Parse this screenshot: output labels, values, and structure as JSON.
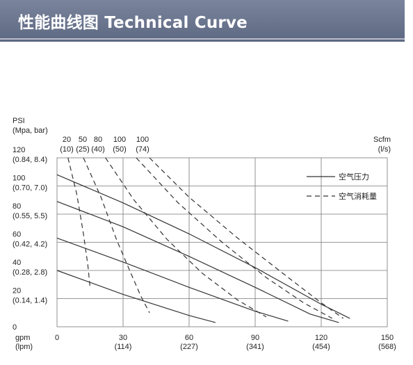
{
  "header": {
    "title": "性能曲线图 Technical Curve"
  },
  "chart_data": {
    "type": "line",
    "title": "性能曲线图 Technical Curve",
    "ylabel": [
      "PSI",
      "(Mpa, bar)"
    ],
    "xlabel": [
      "gpm",
      "(lpm)"
    ],
    "xlim": [
      0,
      150
    ],
    "ylim": [
      0,
      120
    ],
    "grid": true,
    "x_ticks": [
      {
        "value": 0,
        "label": "0",
        "sub": ""
      },
      {
        "value": 30,
        "label": "30",
        "sub": "(114)"
      },
      {
        "value": 60,
        "label": "60",
        "sub": "(227)"
      },
      {
        "value": 90,
        "label": "90",
        "sub": "(341)"
      },
      {
        "value": 120,
        "label": "120",
        "sub": "(454)"
      },
      {
        "value": 150,
        "label": "150",
        "sub": "(568)"
      }
    ],
    "y_ticks": [
      {
        "value": 0,
        "label": "0",
        "sub": ""
      },
      {
        "value": 20,
        "label": "20",
        "sub": "(0.14, 1.4)"
      },
      {
        "value": 40,
        "label": "40",
        "sub": "(0.28, 2.8)"
      },
      {
        "value": 60,
        "label": "60",
        "sub": "(0.42, 4.2)"
      },
      {
        "value": 80,
        "label": "80",
        "sub": "(0.55, 5.5)"
      },
      {
        "value": 100,
        "label": "100",
        "sub": "(0.70, 7.0)"
      },
      {
        "value": 120,
        "label": "120",
        "sub": "(0.84, 8.4)"
      }
    ],
    "air_scale": {
      "unit_label": "Scfm",
      "unit_sub": "(l/s)",
      "ticks": [
        {
          "label": "20",
          "sub": "(10)"
        },
        {
          "label": "50",
          "sub": "(25)"
        },
        {
          "label": "80",
          "sub": "(40)"
        },
        {
          "label": "100",
          "sub": "(50)"
        },
        {
          "label": "100",
          "sub": "(74)"
        }
      ]
    },
    "legend": {
      "placement": "top-right",
      "entries": [
        {
          "label": "空气压力",
          "style": "solid"
        },
        {
          "label": "空气消耗量",
          "style": "dashed"
        }
      ]
    },
    "series": [
      {
        "style": "solid",
        "points": [
          [
            0,
            108
          ],
          [
            30,
            88
          ],
          [
            60,
            66
          ],
          [
            90,
            42
          ],
          [
            120,
            16
          ],
          [
            133,
            6
          ]
        ]
      },
      {
        "style": "solid",
        "points": [
          [
            0,
            89
          ],
          [
            30,
            71
          ],
          [
            60,
            50
          ],
          [
            90,
            28
          ],
          [
            115,
            9
          ],
          [
            128,
            3
          ]
        ]
      },
      {
        "style": "solid",
        "points": [
          [
            0,
            63
          ],
          [
            30,
            46
          ],
          [
            60,
            28
          ],
          [
            90,
            11
          ],
          [
            105,
            4
          ]
        ]
      },
      {
        "style": "solid",
        "points": [
          [
            0,
            40
          ],
          [
            30,
            23
          ],
          [
            60,
            8
          ],
          [
            72,
            3
          ]
        ]
      },
      {
        "style": "dashed",
        "points": [
          [
            5,
            120
          ],
          [
            9,
            94
          ],
          [
            12,
            66
          ],
          [
            14,
            44
          ],
          [
            15,
            28
          ]
        ]
      },
      {
        "style": "dashed",
        "points": [
          [
            12,
            120
          ],
          [
            20,
            92
          ],
          [
            27,
            62
          ],
          [
            33,
            40
          ],
          [
            38,
            22
          ],
          [
            42,
            10
          ]
        ]
      },
      {
        "style": "dashed",
        "points": [
          [
            22,
            120
          ],
          [
            35,
            90
          ],
          [
            50,
            62
          ],
          [
            66,
            38
          ],
          [
            82,
            19
          ],
          [
            95,
            7
          ]
        ]
      },
      {
        "style": "dashed",
        "points": [
          [
            36,
            120
          ],
          [
            55,
            88
          ],
          [
            75,
            60
          ],
          [
            95,
            35
          ],
          [
            112,
            17
          ],
          [
            125,
            6
          ]
        ]
      },
      {
        "style": "dashed",
        "points": [
          [
            42,
            120
          ],
          [
            60,
            92
          ],
          [
            82,
            63
          ],
          [
            105,
            35
          ],
          [
            120,
            17
          ],
          [
            130,
            6
          ]
        ]
      }
    ]
  }
}
